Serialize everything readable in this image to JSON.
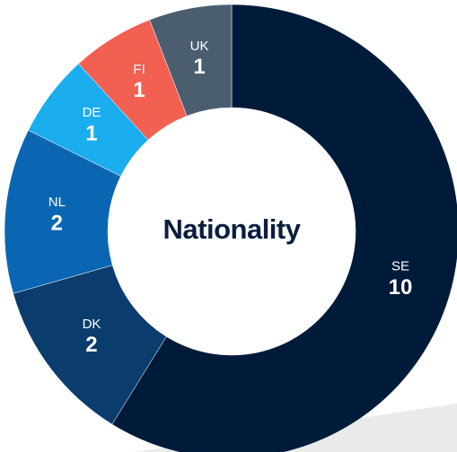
{
  "chart_data": {
    "type": "donut",
    "title": "Nationality",
    "categories": [
      "SE",
      "DK",
      "NL",
      "DE",
      "FI",
      "UK"
    ],
    "values": [
      10,
      2,
      2,
      1,
      1,
      1
    ],
    "colors": [
      "#001b3a",
      "#0a3d6e",
      "#0a66b3",
      "#1aaeef",
      "#f26052",
      "#4a5e70"
    ]
  }
}
